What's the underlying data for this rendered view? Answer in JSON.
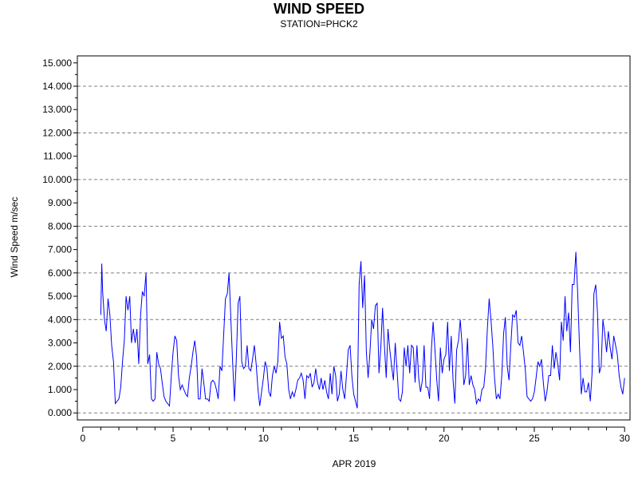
{
  "chart_data": {
    "type": "line",
    "title": "WIND SPEED",
    "subtitle": "STATION=PHCK2",
    "xlabel": "APR 2019",
    "ylabel": "Wind Speed m/sec",
    "xlim": [
      -0.3,
      30.3
    ],
    "ylim": [
      -0.3,
      15.3
    ],
    "xticks": [
      0,
      5,
      10,
      15,
      20,
      25,
      30
    ],
    "xtick_labels": [
      "0",
      "5",
      "10",
      "15",
      "20",
      "25",
      "30"
    ],
    "yticks": [
      0,
      1,
      2,
      3,
      4,
      5,
      6,
      7,
      8,
      9,
      10,
      11,
      12,
      13,
      14,
      15
    ],
    "ytick_labels": [
      "0.000",
      "1.000",
      "2.000",
      "3.000",
      "4.000",
      "5.000",
      "6.000",
      "7.000",
      "8.000",
      "9.000",
      "10.000",
      "11.000",
      "12.000",
      "13.000",
      "14.000",
      "15.000"
    ],
    "grid": "horizontal dashed at even values",
    "line_color": "#0000ff",
    "series": [
      {
        "x": [
          1.0,
          1.05,
          1.1,
          1.2,
          1.3,
          1.4,
          1.5,
          1.6,
          1.7,
          1.8,
          1.9,
          2.0,
          2.1,
          2.2,
          2.3,
          2.4,
          2.5,
          2.6,
          2.7,
          2.8,
          2.9,
          3.0,
          3.1,
          3.2,
          3.3,
          3.4,
          3.5,
          3.6,
          3.7,
          3.8,
          3.9,
          4.0,
          4.1,
          4.2,
          4.3,
          4.4,
          4.5,
          4.6,
          4.7,
          4.8,
          4.9,
          5.0,
          5.1,
          5.2,
          5.3,
          5.4,
          5.5,
          5.6,
          5.7,
          5.8,
          5.9,
          6.0,
          6.1,
          6.2,
          6.3,
          6.4,
          6.5,
          6.6,
          6.7,
          6.8,
          6.9,
          7.0,
          7.1,
          7.2,
          7.3,
          7.4,
          7.5,
          7.6,
          7.7,
          7.8,
          7.9,
          8.0,
          8.1,
          8.2,
          8.3,
          8.4,
          8.5,
          8.6,
          8.7,
          8.8,
          8.9,
          9.0,
          9.1,
          9.2,
          9.3,
          9.4,
          9.5,
          9.6,
          9.7,
          9.8,
          9.9,
          10.0,
          10.1,
          10.2,
          10.3,
          10.4,
          10.5,
          10.6,
          10.7,
          10.8,
          10.9,
          11.0,
          11.1,
          11.2,
          11.3,
          11.4,
          11.5,
          11.6,
          11.7,
          11.8,
          11.9,
          12.0,
          12.1,
          12.2,
          12.3,
          12.4,
          12.5,
          12.6,
          12.7,
          12.8,
          12.9,
          13.0,
          13.1,
          13.2,
          13.3,
          13.4,
          13.5,
          13.6,
          13.7,
          13.8,
          13.9,
          14.0,
          14.1,
          14.2,
          14.3,
          14.4,
          14.5,
          14.6,
          14.7,
          14.8,
          14.9,
          15.0,
          15.1,
          15.2,
          15.3,
          15.4,
          15.5,
          15.6,
          15.7,
          15.8,
          15.9,
          16.0,
          16.1,
          16.2,
          16.3,
          16.4,
          16.5,
          16.6,
          16.7,
          16.8,
          16.9,
          17.0,
          17.1,
          17.2,
          17.3,
          17.4,
          17.5,
          17.6,
          17.7,
          17.8,
          17.9,
          18.0,
          18.1,
          18.2,
          18.3,
          18.4,
          18.5,
          18.6,
          18.7,
          18.8,
          18.9,
          19.0,
          19.1,
          19.2,
          19.3,
          19.4,
          19.5,
          19.6,
          19.7,
          19.8,
          19.9,
          20.0,
          20.1,
          20.2,
          20.3,
          20.4,
          20.5,
          20.6,
          20.7,
          20.8,
          20.9,
          21.0,
          21.1,
          21.2,
          21.3,
          21.4,
          21.5,
          21.6,
          21.7,
          21.8,
          21.9,
          22.0,
          22.1,
          22.2,
          22.3,
          22.4,
          22.5,
          22.6,
          22.7,
          22.8,
          22.9,
          23.0,
          23.1,
          23.2,
          23.3,
          23.4,
          23.5,
          23.6,
          23.7,
          23.8,
          23.9,
          24.0,
          24.1,
          24.2,
          24.3,
          24.4,
          24.5,
          24.6,
          24.7,
          24.8,
          24.9,
          25.0,
          25.1,
          25.2,
          25.3,
          25.4,
          25.5,
          25.6,
          25.7,
          25.8,
          25.9,
          26.0,
          26.1,
          26.2,
          26.3,
          26.4,
          26.5,
          26.6,
          26.7,
          26.8,
          26.9,
          27.0,
          27.1,
          27.2,
          27.3,
          27.4,
          27.5,
          27.6,
          27.7,
          27.8,
          27.9,
          28.0,
          28.1,
          28.2,
          28.3,
          28.4,
          28.5,
          28.6,
          28.7,
          28.8,
          28.9,
          29.0,
          29.1,
          29.2,
          29.3,
          29.4,
          29.5,
          29.6,
          29.7,
          29.8,
          29.9,
          30.0
        ],
        "y": [
          4.2,
          6.4,
          5.2,
          4.0,
          3.5,
          4.9,
          4.2,
          2.9,
          2.2,
          0.4,
          0.5,
          0.6,
          1.1,
          2.2,
          3.1,
          5.0,
          4.4,
          5.0,
          3.0,
          3.6,
          3.0,
          3.6,
          2.1,
          4.2,
          5.2,
          5.0,
          6.0,
          2.1,
          2.5,
          0.6,
          0.5,
          0.6,
          2.6,
          2.1,
          1.9,
          1.3,
          0.7,
          0.5,
          0.4,
          0.3,
          1.6,
          2.6,
          3.3,
          3.1,
          1.6,
          1.0,
          1.2,
          1.0,
          0.8,
          0.7,
          1.5,
          2.0,
          2.6,
          3.1,
          2.4,
          0.6,
          0.6,
          1.9,
          1.3,
          0.6,
          0.6,
          0.5,
          1.3,
          1.4,
          1.3,
          1.0,
          0.6,
          2.0,
          1.8,
          3.3,
          4.9,
          5.1,
          6.0,
          4.0,
          2.1,
          0.5,
          2.3,
          4.7,
          5.0,
          2.2,
          1.9,
          2.0,
          2.9,
          1.9,
          1.8,
          2.3,
          2.9,
          2.1,
          1.0,
          0.3,
          0.9,
          1.5,
          2.2,
          1.9,
          0.9,
          0.7,
          1.6,
          2.0,
          1.7,
          2.2,
          3.9,
          3.2,
          3.3,
          2.4,
          2.1,
          1.0,
          0.6,
          0.9,
          0.7,
          1.0,
          1.4,
          1.5,
          1.7,
          1.4,
          0.6,
          1.6,
          1.5,
          1.7,
          1.1,
          1.3,
          1.9,
          1.3,
          1.0,
          1.5,
          1.0,
          1.4,
          0.9,
          0.6,
          1.7,
          0.8,
          2.0,
          1.6,
          0.5,
          0.8,
          1.8,
          1.0,
          0.6,
          1.6,
          2.7,
          2.9,
          1.6,
          0.8,
          0.5,
          0.2,
          5.5,
          6.5,
          4.5,
          5.9,
          2.6,
          1.5,
          2.6,
          4.0,
          3.6,
          4.6,
          4.7,
          1.7,
          2.8,
          4.5,
          2.9,
          1.5,
          3.6,
          2.7,
          2.0,
          1.4,
          3.0,
          1.8,
          0.6,
          0.5,
          0.9,
          2.8,
          2.0,
          2.9,
          1.7,
          2.9,
          2.8,
          1.3,
          2.9,
          1.5,
          0.9,
          1.4,
          2.9,
          1.1,
          1.1,
          0.6,
          2.7,
          3.9,
          2.7,
          1.4,
          0.5,
          2.8,
          1.7,
          2.3,
          2.5,
          3.9,
          1.8,
          3.3,
          1.4,
          0.4,
          2.7,
          3.1,
          4.0,
          2.9,
          1.2,
          1.6,
          3.2,
          1.2,
          1.6,
          1.2,
          1.0,
          0.4,
          0.6,
          0.5,
          1.0,
          1.1,
          1.9,
          3.6,
          4.9,
          4.0,
          2.9,
          1.5,
          0.6,
          0.8,
          0.6,
          1.6,
          3.4,
          4.1,
          2.0,
          1.4,
          2.9,
          4.2,
          4.1,
          4.4,
          3.0,
          2.9,
          3.3,
          2.6,
          1.9,
          0.7,
          0.6,
          0.5,
          0.6,
          0.9,
          1.5,
          2.2,
          2.0,
          2.3,
          1.3,
          0.5,
          0.9,
          1.6,
          1.6,
          2.9,
          1.9,
          2.6,
          2.1,
          1.4,
          3.9,
          3.1,
          5.0,
          3.5,
          4.3,
          2.6,
          5.5,
          5.5,
          6.9,
          5.2,
          2.9,
          0.8,
          1.5,
          0.9,
          0.9,
          1.3,
          0.5,
          1.7,
          5.1,
          5.5,
          4.3,
          1.7,
          2.0,
          4.0,
          3.4,
          2.6,
          3.5,
          2.8,
          2.3,
          3.3,
          2.9,
          2.5,
          1.6,
          1.1,
          0.8,
          1.5
        ]
      }
    ]
  }
}
